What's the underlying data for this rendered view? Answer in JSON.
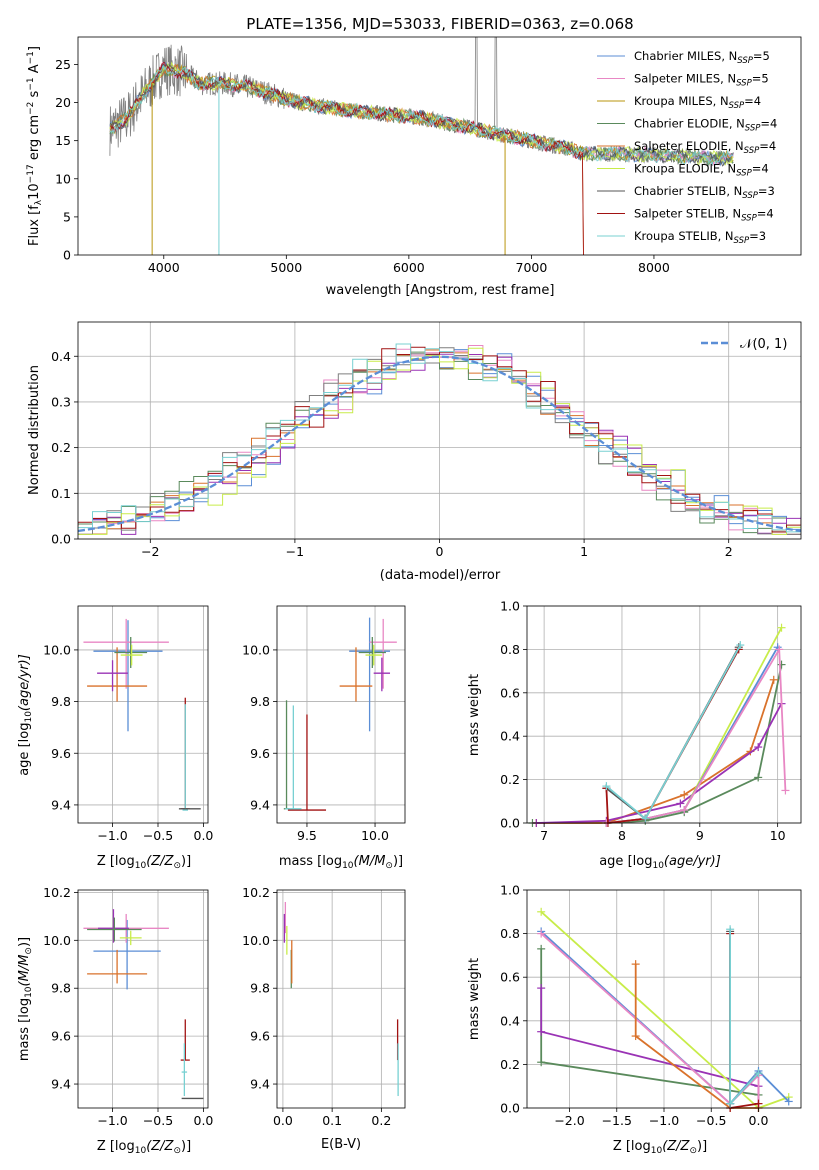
{
  "colors": {
    "blue": "#5b8ed6",
    "orange": "#d9722b",
    "green": "#5a8a5c",
    "purple": "#9a33b5",
    "pink": "#e887c4",
    "grey": "#7f7f7f",
    "lime": "#c8ec4a",
    "red": "#a11212",
    "cyan": "#78d0d2",
    "olive": "#b8960e",
    "darkgrey": "#555555"
  },
  "chart_data": [
    {
      "type": "line",
      "title": "PLATE=1356, MJD=53033, FIBERID=0363, z=0.068",
      "xlabel": "wavelength [Angstrom, rest frame]",
      "ylabel_main": "Flux [f",
      "ylabel_sub": "λ",
      "ylabel_mid": "10",
      "ylabel_exp1": "−17",
      "ylabel_tail": " erg cm",
      "ylabel_exp2": "−2",
      "ylabel_s": " s",
      "ylabel_exp3": "−1",
      "ylabel_end": " A",
      "ylabel_exp4": "−1",
      "ylabel_close": "]",
      "xlim": [
        3300,
        9200
      ],
      "ylim": [
        0,
        28.6
      ],
      "xticks": [
        4000,
        5000,
        6000,
        7000,
        8000
      ],
      "yticks": [
        0,
        5,
        10,
        15,
        20,
        25
      ],
      "legend_position": "top-right",
      "series": [
        {
          "name": "Chabrier MILES, N",
          "sub": "SSP",
          "suffix": "=5",
          "color": "blue"
        },
        {
          "name": "Salpeter MILES, N",
          "sub": "SSP",
          "suffix": "=5",
          "color": "pink"
        },
        {
          "name": "Kroupa MILES, N",
          "sub": "SSP",
          "suffix": "=4",
          "color": "olive"
        },
        {
          "name": "Chabrier ELODIE, N",
          "sub": "SSP",
          "suffix": "=4",
          "color": "green"
        },
        {
          "name": "Salpeter ELODIE, N",
          "sub": "SSP",
          "suffix": "=4",
          "color": "orange"
        },
        {
          "name": "Kroupa ELODIE, N",
          "sub": "SSP",
          "suffix": "=4",
          "color": "lime"
        },
        {
          "name": "Chabrier STELIB, N",
          "sub": "SSP",
          "suffix": "=3",
          "color": "darkgrey"
        },
        {
          "name": "Salpeter STELIB, N",
          "sub": "SSP",
          "suffix": "=4",
          "color": "red"
        },
        {
          "name": "Kroupa STELIB, N",
          "sub": "SSP",
          "suffix": "=3",
          "color": "cyan"
        }
      ],
      "continuum": {
        "x": [
          3560,
          3700,
          3850,
          4000,
          4150,
          4300,
          4500,
          4700,
          4900,
          5100,
          5300,
          5500,
          5800,
          6100,
          6400,
          6700,
          7000,
          7300,
          7420,
          7700,
          8000,
          8300,
          8650
        ],
        "y": [
          16.5,
          18.0,
          21.5,
          24.5,
          24.0,
          22.5,
          22.5,
          22.0,
          21.0,
          20.0,
          19.5,
          19.0,
          18.5,
          18.0,
          17.0,
          16.0,
          15.0,
          14.0,
          13.3,
          13.3,
          13.1,
          12.9,
          12.6
        ]
      }
    },
    {
      "type": "line",
      "xlabel": "(data-model)/error",
      "ylabel": "Normed distribution",
      "xlim": [
        -2.5,
        2.5
      ],
      "ylim": [
        0,
        0.475
      ],
      "xticks": [
        -2,
        -1,
        0,
        1,
        2
      ],
      "yticks": [
        0.0,
        0.1,
        0.2,
        0.3,
        0.4
      ],
      "legend_position": "top-right",
      "legend_label": "𝒩(0, 1)",
      "gaussian": {
        "mean": 0,
        "sigma": 1
      },
      "histogram_bin_width": 0.1
    },
    {
      "type": "scatter",
      "xlabel_main": "Z [log",
      "xlabel_sub": "10",
      "xlabel_end": "(Z/Z",
      "xlabel_sun": "⊙",
      "xlabel_close": ")]",
      "ylabel_main": "age  [log",
      "ylabel_sub": "10",
      "ylabel_end": "(age/yr)]",
      "xlim": [
        -1.38,
        0.05
      ],
      "ylim": [
        9.33,
        10.17
      ],
      "xticks": [
        -1.0,
        -0.5,
        0.0
      ],
      "xticklabels": [
        "−1.0",
        "−0.5",
        "0.0"
      ],
      "yticks": [
        9.4,
        9.6,
        9.8,
        10.0
      ],
      "points": [
        {
          "x": -0.83,
          "y": 9.995,
          "xerr": 0.38,
          "yerr": [
            0.31,
            0.12
          ],
          "color": "blue"
        },
        {
          "x": -0.85,
          "y": 10.03,
          "xerr": 0.47,
          "yerr": [
            0.18,
            0.09
          ],
          "color": "pink"
        },
        {
          "x": -0.95,
          "y": 9.86,
          "xerr": 0.33,
          "yerr": [
            0.06,
            0.15
          ],
          "color": "orange"
        },
        {
          "x": -1.0,
          "y": 9.91,
          "xerr": 0.17,
          "yerr": [
            0.07,
            0.05
          ],
          "color": "purple"
        },
        {
          "x": -0.8,
          "y": 9.99,
          "xerr": 0.18,
          "yerr": [
            0.06,
            0.06
          ],
          "color": "green"
        },
        {
          "x": -0.79,
          "y": 9.98,
          "xerr": 0.12,
          "yerr": [
            0.04,
            0.04
          ],
          "color": "lime"
        },
        {
          "x": -0.2,
          "y": 9.385,
          "xerr": 0.05,
          "yerr": [
            0.0,
            0.43
          ],
          "color": "red"
        },
        {
          "x": -0.2,
          "y": 9.38,
          "xerr": 0.03,
          "yerr": [
            0.0,
            0.41
          ],
          "color": "cyan"
        },
        {
          "x": -0.15,
          "y": 9.385,
          "xerr": 0.12,
          "yerr": [
            0.0,
            0.0
          ],
          "color": "darkgrey"
        }
      ]
    },
    {
      "type": "scatter",
      "xlabel_main": "mass [log",
      "xlabel_sub": "10",
      "xlabel_end": "(M/M",
      "xlabel_sun": "⊙",
      "xlabel_close": ")]",
      "xlim": [
        9.28,
        10.22
      ],
      "ylim": [
        9.33,
        10.17
      ],
      "xticks": [
        9.5,
        10.0
      ],
      "xticklabels": [
        "9.5",
        "10.0"
      ],
      "yticks": [
        9.4,
        9.6,
        9.8,
        10.0
      ],
      "points": [
        {
          "x": 9.96,
          "y": 9.995,
          "xerr": 0.15,
          "yerr": [
            0.31,
            0.13
          ],
          "color": "blue"
        },
        {
          "x": 10.06,
          "y": 10.03,
          "xerr": 0.1,
          "yerr": [
            0.18,
            0.09
          ],
          "color": "pink"
        },
        {
          "x": 9.86,
          "y": 9.86,
          "xerr": 0.12,
          "yerr": [
            0.06,
            0.15
          ],
          "color": "orange"
        },
        {
          "x": 10.05,
          "y": 9.91,
          "xerr": 0.06,
          "yerr": [
            0.07,
            0.06
          ],
          "color": "purple"
        },
        {
          "x": 9.98,
          "y": 9.99,
          "xerr": 0.1,
          "yerr": [
            0.06,
            0.06
          ],
          "color": "green"
        },
        {
          "x": 9.99,
          "y": 9.98,
          "xerr": 0.06,
          "yerr": [
            0.04,
            0.04
          ],
          "color": "lime"
        },
        {
          "x": 9.35,
          "y": 9.385,
          "xerr": 0.02,
          "yerr": [
            0.0,
            0.42
          ],
          "color": "green"
        },
        {
          "x": 9.5,
          "y": 9.38,
          "xerr": 0.14,
          "yerr": [
            0.0,
            0.37
          ],
          "color": "red"
        },
        {
          "x": 9.4,
          "y": 9.385,
          "xerr": 0.06,
          "yerr": [
            0.0,
            0.4
          ],
          "color": "cyan"
        }
      ]
    },
    {
      "type": "line",
      "xlabel_main": "age  [log",
      "xlabel_sub": "10",
      "xlabel_end": "(age/yr)]",
      "ylabel": "mass weight",
      "xlim": [
        6.78,
        10.3
      ],
      "ylim": [
        0,
        1.0
      ],
      "xticks": [
        7,
        8,
        9,
        10
      ],
      "yticks": [
        0.0,
        0.2,
        0.4,
        0.6,
        0.8,
        1.0
      ],
      "series": [
        {
          "color": "green",
          "x": [
            6.85,
            7.8,
            8.3,
            8.8,
            9.75,
            10.05
          ],
          "y": [
            0.0,
            0.0,
            0.01,
            0.05,
            0.21,
            0.73
          ]
        },
        {
          "color": "orange",
          "x": [
            6.9,
            7.8,
            8.8,
            9.65,
            9.95
          ],
          "y": [
            0.0,
            0.0,
            0.13,
            0.33,
            0.66
          ]
        },
        {
          "color": "purple",
          "x": [
            6.9,
            7.8,
            8.75,
            9.75,
            10.05
          ],
          "y": [
            0.0,
            0.01,
            0.09,
            0.35,
            0.55
          ]
        },
        {
          "color": "lime",
          "x": [
            7.8,
            8.3,
            8.8,
            10.05
          ],
          "y": [
            0.0,
            0.02,
            0.06,
            0.9
          ]
        },
        {
          "color": "blue",
          "x": [
            7.8,
            8.3,
            8.8,
            10.0
          ],
          "y": [
            0.0,
            0.02,
            0.06,
            0.81
          ]
        },
        {
          "color": "pink",
          "x": [
            7.8,
            8.3,
            8.8,
            10.02,
            10.1
          ],
          "y": [
            0.0,
            0.02,
            0.06,
            0.8,
            0.15
          ]
        },
        {
          "color": "darkgrey",
          "x": [
            7.8,
            8.3,
            9.5
          ],
          "y": [
            0.16,
            0.02,
            0.81
          ]
        },
        {
          "color": "red",
          "x": [
            7.8,
            7.82,
            8.3,
            9.5
          ],
          "y": [
            0.16,
            0.0,
            0.02,
            0.8
          ]
        },
        {
          "color": "cyan",
          "x": [
            7.8,
            8.3,
            9.52
          ],
          "y": [
            0.17,
            0.02,
            0.82
          ]
        }
      ]
    },
    {
      "type": "scatter",
      "xlabel_main": "Z [log",
      "xlabel_sub": "10",
      "xlabel_end": "(Z/Z",
      "xlabel_sun": "⊙",
      "xlabel_close": ")]",
      "ylabel_main": "mass [log",
      "ylabel_sub": "10",
      "ylabel_end": "(M/M",
      "ylabel_sun": "⊙",
      "ylabel_close": ")]",
      "xlim": [
        -1.38,
        0.05
      ],
      "ylim": [
        9.3,
        10.21
      ],
      "xticks": [
        -1.0,
        -0.5,
        0.0
      ],
      "xticklabels": [
        "−1.0",
        "−0.5",
        "0.0"
      ],
      "yticks": [
        9.4,
        9.6,
        9.8,
        10.0,
        10.2
      ],
      "points": [
        {
          "x": -0.84,
          "y": 9.955,
          "xerr": 0.37,
          "yerr": [
            0.16,
            0.13
          ],
          "color": "blue"
        },
        {
          "x": -0.85,
          "y": 10.05,
          "xerr": 0.47,
          "yerr": [
            0.06,
            0.06
          ],
          "color": "pink"
        },
        {
          "x": -0.95,
          "y": 9.86,
          "xerr": 0.33,
          "yerr": [
            0.04,
            0.1
          ],
          "color": "orange"
        },
        {
          "x": -0.99,
          "y": 10.05,
          "xerr": 0.17,
          "yerr": [
            0.06,
            0.08
          ],
          "color": "purple"
        },
        {
          "x": -0.98,
          "y": 10.045,
          "xerr": 0.3,
          "yerr": [
            0.05,
            0.05
          ],
          "color": "green"
        },
        {
          "x": -0.8,
          "y": 10.01,
          "xerr": 0.12,
          "yerr": [
            0.03,
            0.03
          ],
          "color": "lime"
        },
        {
          "x": -0.2,
          "y": 9.5,
          "xerr": 0.05,
          "yerr": [
            0.0,
            0.17
          ],
          "color": "red"
        },
        {
          "x": -0.21,
          "y": 9.45,
          "xerr": 0.03,
          "yerr": [
            0.1,
            0.12
          ],
          "color": "cyan"
        },
        {
          "x": -0.12,
          "y": 9.34,
          "xerr": 0.12,
          "yerr": [
            0.0,
            0.0
          ],
          "color": "darkgrey"
        }
      ]
    },
    {
      "type": "scatter",
      "xlabel": "E(B-V)",
      "xlim": [
        -0.012,
        0.248
      ],
      "ylim": [
        9.3,
        10.21
      ],
      "xticks": [
        0.0,
        0.1,
        0.2
      ],
      "xticklabels": [
        "0.0",
        "0.1",
        "0.2"
      ],
      "yticks": [
        9.4,
        9.6,
        9.8,
        10.0,
        10.2
      ],
      "points": [
        {
          "x": 0.005,
          "y": 10.08,
          "yerr": [
            0.05,
            0.08
          ],
          "color": "pink"
        },
        {
          "x": 0.003,
          "y": 10.05,
          "yerr": [
            0.06,
            0.06
          ],
          "color": "purple"
        },
        {
          "x": 0.008,
          "y": 10.0,
          "yerr": [
            0.06,
            0.06
          ],
          "color": "lime"
        },
        {
          "x": 0.017,
          "y": 9.9,
          "yerr": [
            0.1,
            0.06
          ],
          "color": "green"
        },
        {
          "x": 0.018,
          "y": 9.88,
          "yerr": [
            0.06,
            0.12
          ],
          "color": "orange"
        },
        {
          "x": 0.233,
          "y": 9.55,
          "yerr": [
            0.05,
            0.12
          ],
          "color": "red"
        },
        {
          "x": 0.234,
          "y": 9.45,
          "yerr": [
            0.1,
            0.12
          ],
          "color": "cyan"
        }
      ]
    },
    {
      "type": "line",
      "xlabel_main": "Z [log",
      "xlabel_sub": "10",
      "xlabel_end": "(Z/Z",
      "xlabel_sun": "⊙",
      "xlabel_close": ")]",
      "ylabel": "mass weight",
      "xlim": [
        -2.45,
        0.45
      ],
      "ylim": [
        0,
        1.0
      ],
      "xticks": [
        -2.0,
        -1.5,
        -1.0,
        -0.5,
        0.0
      ],
      "xticklabels": [
        "−2.0",
        "−1.5",
        "−1.0",
        "−0.5",
        "0.0"
      ],
      "yticks": [
        0.0,
        0.2,
        0.4,
        0.6,
        0.8,
        1.0
      ],
      "series": [
        {
          "color": "green",
          "x": [
            -2.3,
            -2.3,
            0.0
          ],
          "y": [
            0.73,
            0.21,
            0.06
          ]
        },
        {
          "color": "purple",
          "x": [
            -2.3,
            -2.3,
            0.0,
            0.0
          ],
          "y": [
            0.55,
            0.35,
            0.1,
            0.0
          ]
        },
        {
          "color": "lime",
          "x": [
            -2.3,
            0.0,
            0.32
          ],
          "y": [
            0.9,
            0.0,
            0.05
          ]
        },
        {
          "color": "blue",
          "x": [
            -2.3,
            -0.3,
            0.0,
            0.32
          ],
          "y": [
            0.81,
            0.02,
            0.17,
            0.03
          ]
        },
        {
          "color": "pink",
          "x": [
            -2.3,
            -0.3,
            0.0,
            0.0
          ],
          "y": [
            0.8,
            0.02,
            0.15,
            0.0
          ]
        },
        {
          "color": "orange",
          "x": [
            -1.3,
            -1.3,
            -0.3,
            0.0
          ],
          "y": [
            0.66,
            0.33,
            0.0,
            0.0
          ]
        },
        {
          "color": "darkgrey",
          "x": [
            -0.3,
            -0.3,
            0.0
          ],
          "y": [
            0.81,
            0.02,
            0.16
          ]
        },
        {
          "color": "red",
          "x": [
            -0.3,
            -0.3,
            0.0
          ],
          "y": [
            0.8,
            0.0,
            0.02
          ]
        },
        {
          "color": "cyan",
          "x": [
            -0.3,
            -0.3,
            0.0
          ],
          "y": [
            0.82,
            0.02,
            0.16
          ]
        }
      ]
    }
  ]
}
